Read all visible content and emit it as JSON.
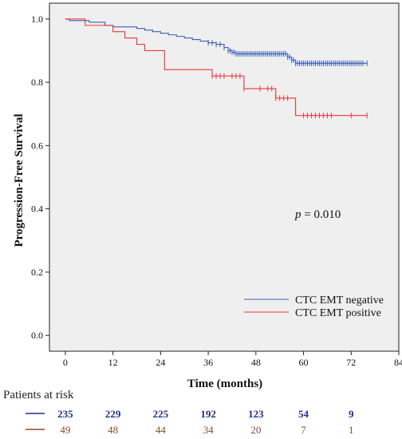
{
  "chart_data": {
    "type": "line",
    "title": "",
    "xlabel": "Time (months)",
    "ylabel": "Progression-Free Survival",
    "xlim": [
      -4,
      84
    ],
    "ylim": [
      -0.05,
      1.05
    ],
    "x_ticks": [
      0,
      12,
      24,
      36,
      48,
      60,
      72,
      84
    ],
    "y_ticks": [
      0.0,
      0.2,
      0.4,
      0.6,
      0.8,
      1.0
    ],
    "y_tick_labels": [
      "0.0",
      "0.2",
      "0.4",
      "0.6",
      "0.8",
      "1.0"
    ],
    "grid": false,
    "background": "#efefef",
    "legend_position": "bottom-right",
    "annotation": {
      "prefix": "p",
      "text": " = 0.010"
    },
    "series": [
      {
        "name": "CTC EMT negative",
        "color": "#3a5fb5",
        "steps": [
          [
            0,
            1.0
          ],
          [
            1,
            0.995
          ],
          [
            6,
            0.99
          ],
          [
            10,
            0.98
          ],
          [
            12,
            0.975
          ],
          [
            18,
            0.97
          ],
          [
            20,
            0.965
          ],
          [
            22,
            0.96
          ],
          [
            24,
            0.955
          ],
          [
            26,
            0.95
          ],
          [
            28,
            0.945
          ],
          [
            30,
            0.94
          ],
          [
            32,
            0.935
          ],
          [
            34,
            0.93
          ],
          [
            36,
            0.925
          ],
          [
            38,
            0.92
          ],
          [
            40,
            0.91
          ],
          [
            41,
            0.9
          ],
          [
            42,
            0.895
          ],
          [
            43,
            0.89
          ],
          [
            56,
            0.88
          ],
          [
            57,
            0.87
          ],
          [
            58,
            0.86
          ],
          [
            76,
            0.86
          ]
        ],
        "censor_x": [
          36,
          37,
          38,
          39,
          40,
          41,
          41.5,
          42,
          42.5,
          43,
          43.5,
          44,
          44.5,
          45,
          45.5,
          46,
          46.5,
          47,
          47.5,
          48,
          48.5,
          49,
          49.5,
          50,
          50.5,
          51,
          51.5,
          52,
          52.5,
          53,
          53.5,
          54,
          54.5,
          55,
          55.5,
          56,
          56.5,
          57,
          57.5,
          58,
          58.5,
          59,
          59.5,
          60,
          60.5,
          61,
          61.5,
          62,
          62.5,
          63,
          63.5,
          64,
          64.5,
          65,
          65.5,
          66,
          66.5,
          67,
          67.5,
          68,
          68.5,
          69,
          69.5,
          70,
          70.5,
          71,
          71.5,
          72,
          72.5,
          73,
          73.5,
          74,
          74.5,
          75,
          76
        ]
      },
      {
        "name": "CTC EMT positive",
        "color": "#e8393c",
        "steps": [
          [
            0,
            1.0
          ],
          [
            5,
            0.98
          ],
          [
            12,
            0.96
          ],
          [
            15,
            0.94
          ],
          [
            18,
            0.92
          ],
          [
            20,
            0.9
          ],
          [
            25,
            0.84
          ],
          [
            37,
            0.82
          ],
          [
            45,
            0.78
          ],
          [
            53,
            0.75
          ],
          [
            58,
            0.695
          ],
          [
            76,
            0.695
          ]
        ],
        "censor_x": [
          37,
          38,
          39,
          40,
          42,
          43,
          44,
          45,
          49,
          51,
          52,
          53,
          54,
          55,
          56,
          60,
          61,
          62,
          63,
          64,
          65,
          66,
          67,
          72,
          76
        ]
      }
    ],
    "risk_table": {
      "title": "Patients at risk",
      "time_points": [
        0,
        12,
        24,
        36,
        48,
        60,
        72
      ],
      "rows": [
        {
          "color": "#1f2f8c",
          "values": [
            "235",
            "229",
            "225",
            "192",
            "123",
            "54",
            "9"
          ]
        },
        {
          "color": "#8a4a2a",
          "values": [
            "49",
            "48",
            "44",
            "34",
            "20",
            "7",
            "1"
          ]
        }
      ]
    }
  }
}
